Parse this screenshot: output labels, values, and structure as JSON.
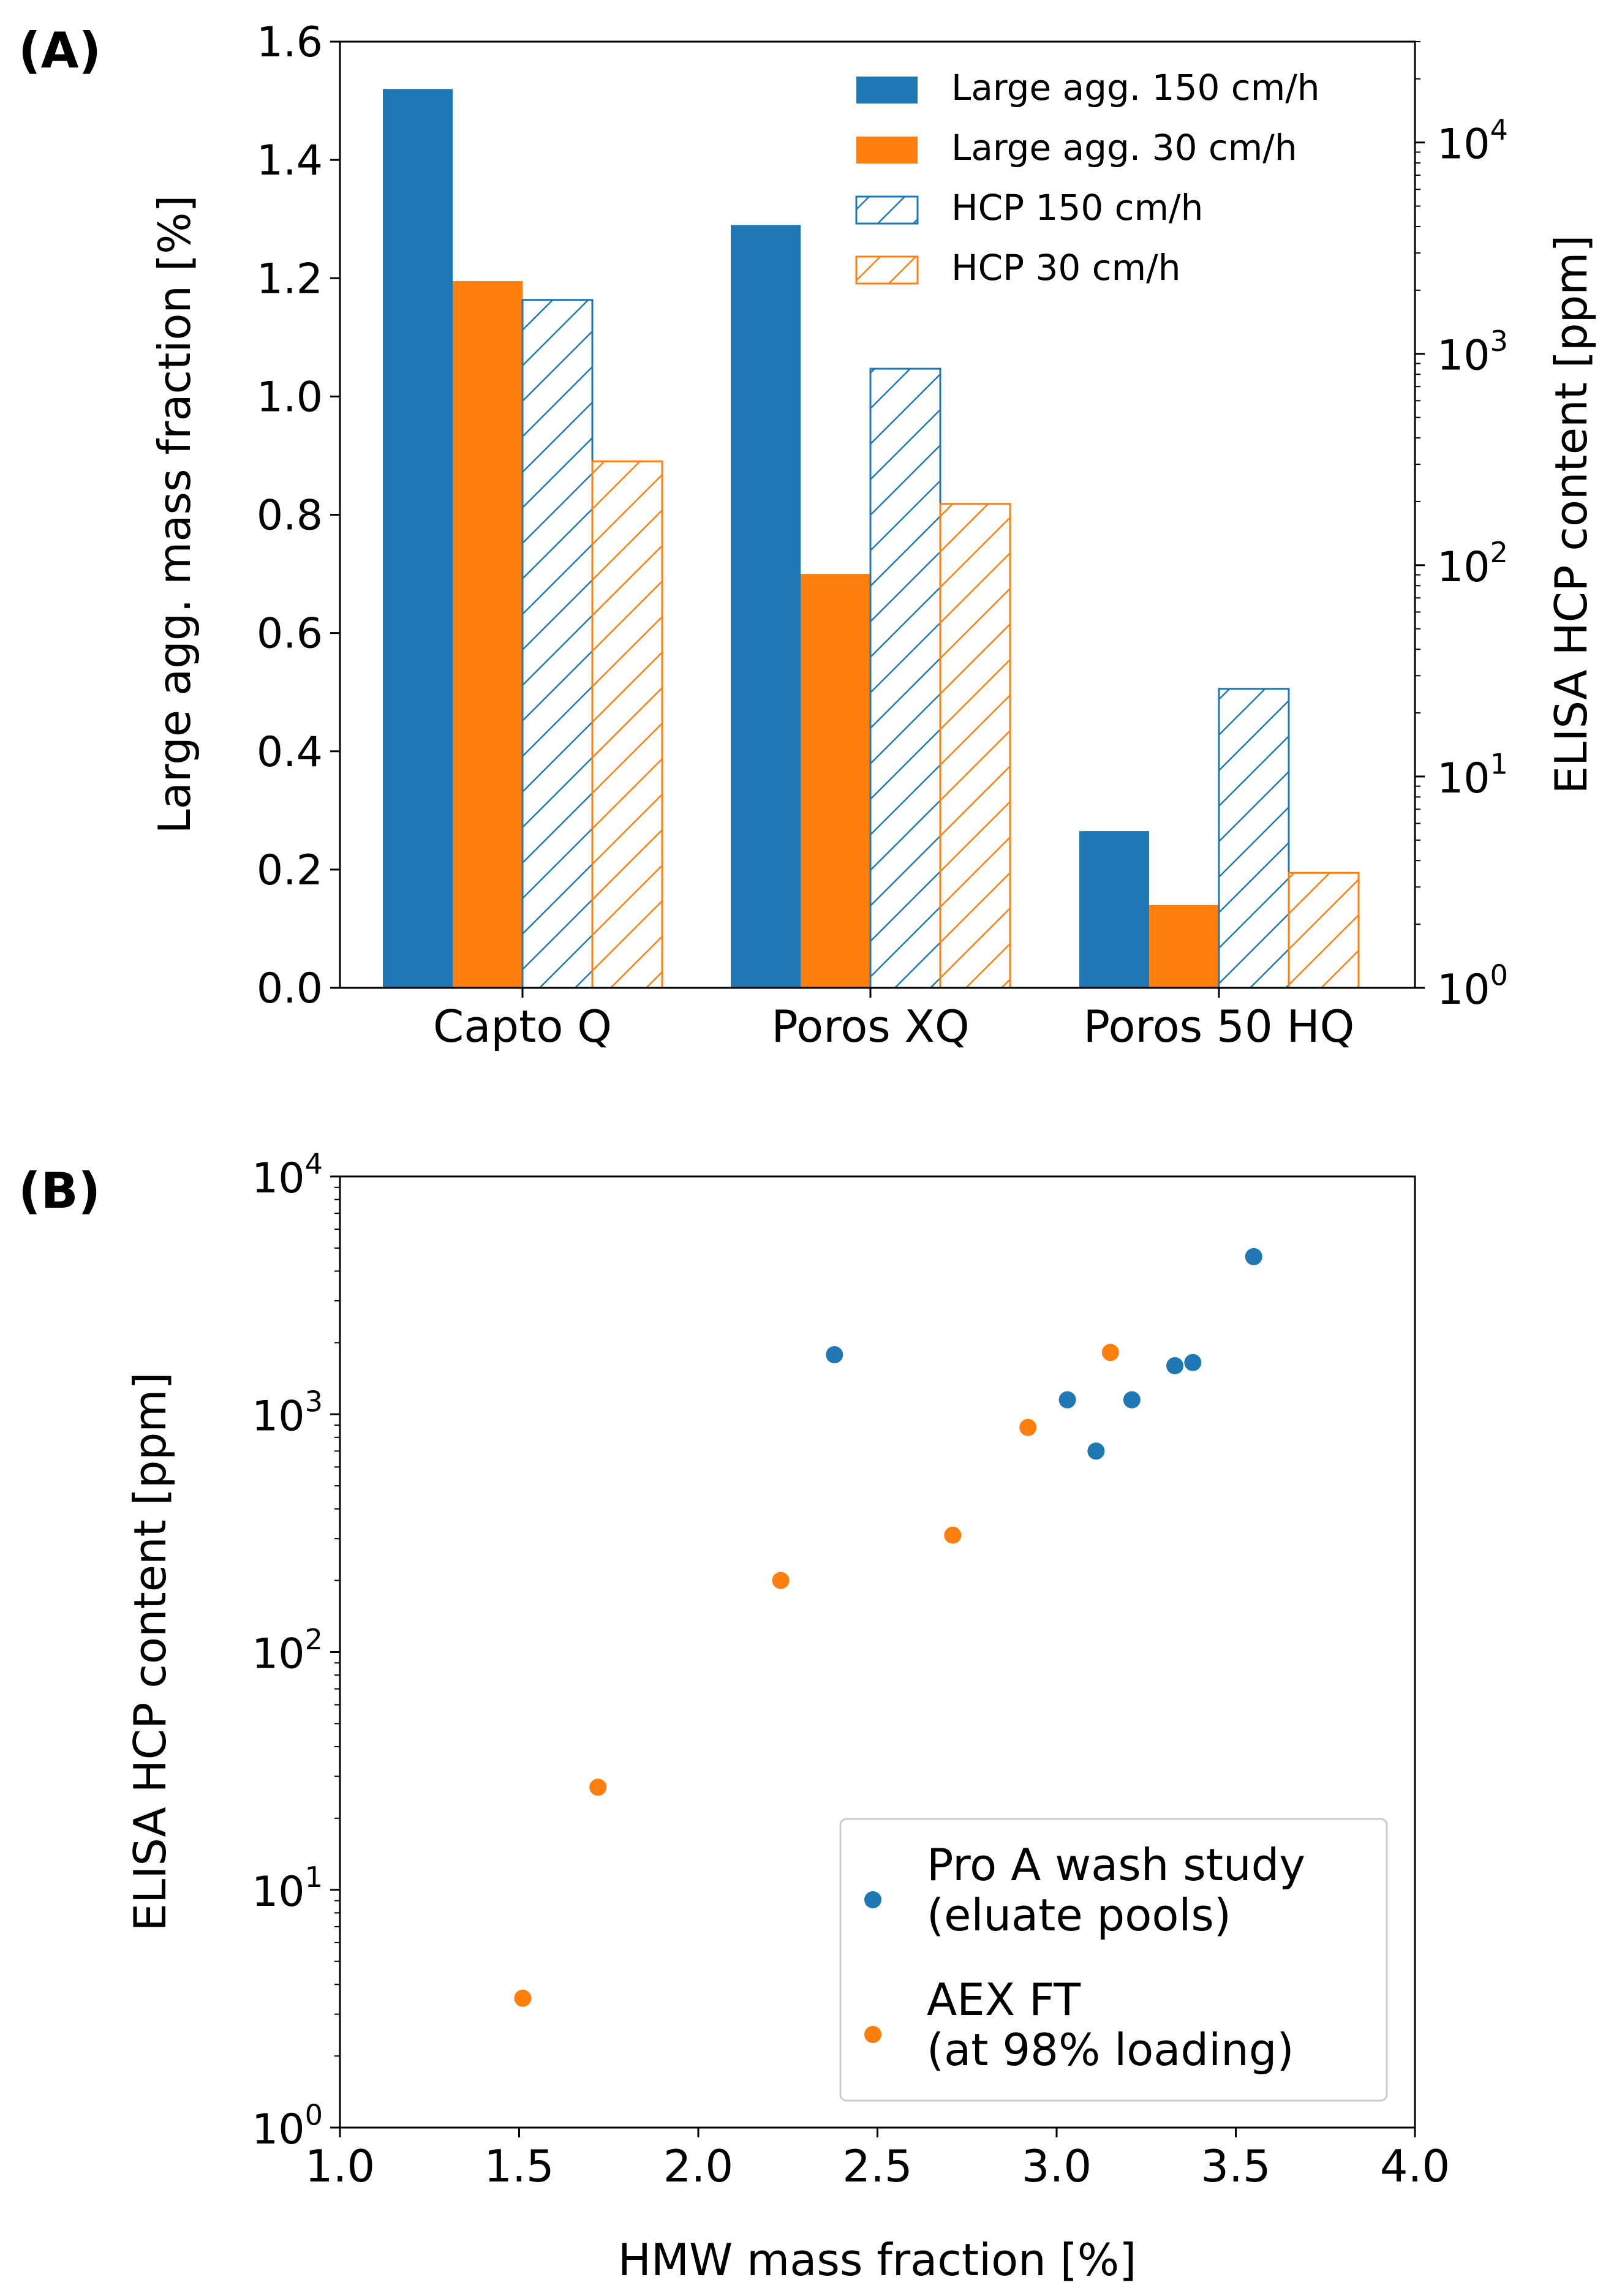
{
  "chart_data": [
    {
      "panel_label": "(A)",
      "type": "bar",
      "categories": [
        "Capto Q",
        "Poros XQ",
        "Poros 50 HQ"
      ],
      "ylabel": "Large agg. mass fraction [%]",
      "y2label": "ELISA HCP content [ppm]",
      "ylim": [
        0,
        1.6
      ],
      "yticks": [
        "0.0",
        "0.2",
        "0.4",
        "0.6",
        "0.8",
        "1.0",
        "1.2",
        "1.4",
        "1.6"
      ],
      "y2scale": "log",
      "y2lim": [
        1,
        30000
      ],
      "y2ticks": [
        {
          "base": "10",
          "exp": "0"
        },
        {
          "base": "10",
          "exp": "1"
        },
        {
          "base": "10",
          "exp": "2"
        },
        {
          "base": "10",
          "exp": "3"
        },
        {
          "base": "10",
          "exp": "4"
        }
      ],
      "legend_position": "top-right",
      "series": [
        {
          "name": "Large agg. 150 cm/h",
          "axis": "left",
          "color": "#1f77b4",
          "fill": "solid",
          "values": [
            1.52,
            1.29,
            0.265
          ]
        },
        {
          "name": "Large agg. 30 cm/h",
          "axis": "left",
          "color": "#ff7f0e",
          "fill": "solid",
          "values": [
            1.195,
            0.7,
            0.14
          ]
        },
        {
          "name": "HCP 150 cm/h",
          "axis": "right",
          "color": "#1f77b4",
          "fill": "hatch",
          "values": [
            1800,
            850,
            26
          ]
        },
        {
          "name": "HCP 30 cm/h",
          "axis": "right",
          "color": "#ff7f0e",
          "fill": "hatch",
          "values": [
            310,
            195,
            3.5
          ]
        }
      ]
    },
    {
      "panel_label": "(B)",
      "type": "scatter",
      "xlabel": "HMW mass fraction [%]",
      "ylabel": "ELISA HCP content [ppm]",
      "xlim": [
        1.0,
        4.0
      ],
      "xticks": [
        "1.0",
        "1.5",
        "2.0",
        "2.5",
        "3.0",
        "3.5",
        "4.0"
      ],
      "yscale": "log",
      "ylim": [
        1,
        10000
      ],
      "yticks": [
        {
          "base": "10",
          "exp": "0"
        },
        {
          "base": "10",
          "exp": "1"
        },
        {
          "base": "10",
          "exp": "2"
        },
        {
          "base": "10",
          "exp": "3"
        },
        {
          "base": "10",
          "exp": "4"
        }
      ],
      "legend_position": "bottom-right",
      "series": [
        {
          "name": "Pro A wash study",
          "subname": "(eluate pools)",
          "color": "#1f77b4",
          "x": [
            2.38,
            3.03,
            3.11,
            3.21,
            3.33,
            3.38,
            3.55
          ],
          "y": [
            1780,
            1150,
            700,
            1150,
            1600,
            1650,
            4600
          ]
        },
        {
          "name": "AEX FT",
          "subname": "(at 98% loading)",
          "color": "#ff7f0e",
          "x": [
            1.51,
            1.72,
            2.23,
            2.71,
            2.92,
            3.15
          ],
          "y": [
            3.5,
            27,
            200,
            310,
            880,
            1820
          ]
        }
      ]
    }
  ]
}
